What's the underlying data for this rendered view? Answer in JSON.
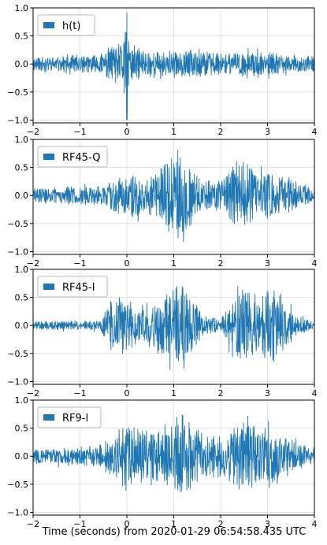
{
  "figure": {
    "xlabel": "Time (seconds) from 2020-01-29 06:54:58.435 UTC"
  },
  "chart_data": [
    {
      "type": "line",
      "series": [
        {
          "name": "h(t)",
          "color": "#1f77b4",
          "envelope": [
            [
              -2.0,
              0.15
            ],
            [
              -0.6,
              0.18
            ],
            [
              -0.4,
              0.3
            ],
            [
              -0.2,
              0.35
            ],
            [
              -0.05,
              0.6
            ],
            [
              0.0,
              1.0
            ],
            [
              0.05,
              0.35
            ],
            [
              0.3,
              0.3
            ],
            [
              1.0,
              0.22
            ],
            [
              1.5,
              0.3
            ],
            [
              2.0,
              0.2
            ],
            [
              2.5,
              0.25
            ],
            [
              3.0,
              0.22
            ],
            [
              4.0,
              0.15
            ]
          ]
        }
      ],
      "xlim": [
        -2,
        4
      ],
      "ylim": [
        -1.05,
        1.0
      ],
      "xticks": [
        -2,
        -1,
        0,
        1,
        2,
        3,
        4
      ],
      "xtick_labels": [
        "−2",
        "−1",
        "0",
        "1",
        "2",
        "3",
        "4"
      ],
      "yticks": [
        -1.0,
        -0.5,
        0.0,
        0.5,
        1.0
      ],
      "ytick_labels": [
        "−1.0",
        "−0.5",
        "0.0",
        "0.5",
        "1.0"
      ],
      "grid": true,
      "legend": "top-left"
    },
    {
      "type": "line",
      "series": [
        {
          "name": "RF45-Q",
          "color": "#1f77b4",
          "envelope": [
            [
              -2.0,
              0.15
            ],
            [
              -0.5,
              0.2
            ],
            [
              -0.2,
              0.4
            ],
            [
              0.0,
              0.35
            ],
            [
              0.2,
              0.45
            ],
            [
              0.6,
              0.4
            ],
            [
              0.9,
              0.8
            ],
            [
              1.1,
              0.9
            ],
            [
              1.3,
              0.7
            ],
            [
              1.6,
              0.3
            ],
            [
              2.0,
              0.3
            ],
            [
              2.3,
              0.6
            ],
            [
              2.6,
              0.7
            ],
            [
              2.8,
              0.4
            ],
            [
              3.0,
              0.5
            ],
            [
              3.3,
              0.4
            ],
            [
              3.6,
              0.3
            ],
            [
              4.0,
              0.15
            ]
          ]
        }
      ],
      "xlim": [
        -2,
        4
      ],
      "ylim": [
        -1.05,
        1.0
      ],
      "xticks": [
        -2,
        -1,
        0,
        1,
        2,
        3,
        4
      ],
      "xtick_labels": [
        "−2",
        "−1",
        "0",
        "1",
        "2",
        "3",
        "4"
      ],
      "yticks": [
        -1.0,
        -0.5,
        0.0,
        0.5,
        1.0
      ],
      "ytick_labels": [
        "−1.0",
        "−0.5",
        "0.0",
        "0.5",
        "1.0"
      ],
      "grid": true,
      "legend": "top-left"
    },
    {
      "type": "line",
      "series": [
        {
          "name": "RF45-I",
          "color": "#1f77b4",
          "envelope": [
            [
              -2.0,
              0.08
            ],
            [
              -0.6,
              0.1
            ],
            [
              -0.3,
              0.5
            ],
            [
              0.0,
              0.6
            ],
            [
              0.2,
              0.35
            ],
            [
              0.5,
              0.5
            ],
            [
              0.9,
              0.7
            ],
            [
              1.1,
              0.8
            ],
            [
              1.3,
              0.7
            ],
            [
              1.6,
              0.2
            ],
            [
              2.0,
              0.12
            ],
            [
              2.3,
              0.6
            ],
            [
              2.6,
              0.7
            ],
            [
              2.8,
              0.55
            ],
            [
              3.0,
              0.8
            ],
            [
              3.3,
              0.6
            ],
            [
              3.6,
              0.2
            ],
            [
              4.0,
              0.08
            ]
          ]
        }
      ],
      "xlim": [
        -2,
        4
      ],
      "ylim": [
        -1.05,
        1.0
      ],
      "xticks": [
        -2,
        -1,
        0,
        1,
        2,
        3,
        4
      ],
      "xtick_labels": [
        "−2",
        "−1",
        "0",
        "1",
        "2",
        "3",
        "4"
      ],
      "yticks": [
        -1.0,
        -0.5,
        0.0,
        0.5,
        1.0
      ],
      "ytick_labels": [
        "−1.0",
        "−0.5",
        "0.0",
        "0.5",
        "1.0"
      ],
      "grid": true,
      "legend": "top-left"
    },
    {
      "type": "line",
      "series": [
        {
          "name": "RF9-I",
          "color": "#1f77b4",
          "envelope": [
            [
              -2.0,
              0.15
            ],
            [
              -0.6,
              0.2
            ],
            [
              -0.3,
              0.4
            ],
            [
              0.0,
              0.7
            ],
            [
              0.2,
              0.55
            ],
            [
              0.5,
              0.5
            ],
            [
              0.9,
              0.6
            ],
            [
              1.1,
              0.9
            ],
            [
              1.3,
              0.7
            ],
            [
              1.6,
              0.55
            ],
            [
              2.0,
              0.4
            ],
            [
              2.3,
              0.6
            ],
            [
              2.6,
              0.65
            ],
            [
              2.8,
              0.55
            ],
            [
              3.0,
              0.75
            ],
            [
              3.3,
              0.5
            ],
            [
              3.6,
              0.3
            ],
            [
              4.0,
              0.15
            ]
          ]
        }
      ],
      "xlim": [
        -2,
        4
      ],
      "ylim": [
        -1.05,
        1.0
      ],
      "xticks": [
        -2,
        -1,
        0,
        1,
        2,
        3,
        4
      ],
      "xtick_labels": [
        "−2",
        "−1",
        "0",
        "1",
        "2",
        "3",
        "4"
      ],
      "yticks": [
        -1.0,
        -0.5,
        0.0,
        0.5,
        1.0
      ],
      "ytick_labels": [
        "−1.0",
        "−0.5",
        "0.0",
        "0.5",
        "1.0"
      ],
      "grid": true,
      "legend": "top-left"
    }
  ]
}
